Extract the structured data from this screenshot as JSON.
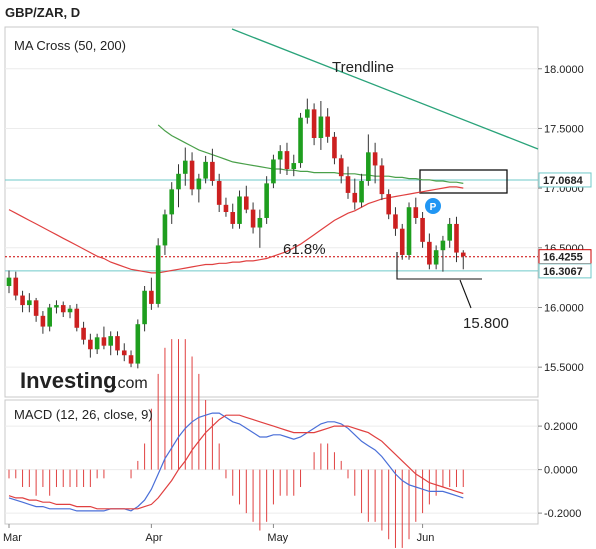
{
  "header": {
    "title": "GBP/ZAR, D"
  },
  "branding": {
    "logo_text": "Investing",
    "logo_suffix": ".com"
  },
  "colors": {
    "up": "#1e9e1e",
    "down": "#cc2020",
    "ma50": "#e04040",
    "ma200": "#4aa04a",
    "trendline": "#2aa37a",
    "hline": "#6fc9c9",
    "price_line": "#cc0000",
    "macd": "#4a6fd8",
    "signal": "#e04040",
    "hist": "#e04040"
  },
  "chart_data": [
    {
      "type": "candlestick",
      "panel_label": "MA Cross (50, 200)",
      "x_tick_labels": [
        "Mar",
        "Apr",
        "May",
        "Jun"
      ],
      "y_tick_labels": [
        "15.5000",
        "16.0000",
        "16.5000",
        "17.0000",
        "17.5000",
        "18.0000"
      ],
      "ylim": [
        15.25,
        18.35
      ],
      "price_badges": [
        {
          "label": "17.0684",
          "value": 17.0684
        },
        {
          "label": "16.4255",
          "value": 16.4255
        },
        {
          "label": "16.3067",
          "value": 16.3067
        }
      ],
      "annotations": [
        {
          "text": "Trendline"
        },
        {
          "text": "61.8%"
        },
        {
          "text": "15.800"
        },
        {
          "text": "P"
        }
      ],
      "ohlc": [
        [
          16.18,
          16.31,
          16.12,
          16.25
        ],
        [
          16.25,
          16.3,
          16.06,
          16.1
        ],
        [
          16.1,
          16.14,
          15.96,
          16.02
        ],
        [
          16.02,
          16.12,
          15.96,
          16.06
        ],
        [
          16.06,
          16.08,
          15.88,
          15.93
        ],
        [
          15.93,
          15.97,
          15.78,
          15.84
        ],
        [
          15.84,
          16.03,
          15.8,
          16.0
        ],
        [
          16.0,
          16.06,
          15.95,
          16.02
        ],
        [
          16.02,
          16.05,
          15.92,
          15.96
        ],
        [
          15.96,
          16.02,
          15.91,
          15.99
        ],
        [
          15.99,
          16.03,
          15.8,
          15.83
        ],
        [
          15.83,
          15.88,
          15.69,
          15.73
        ],
        [
          15.73,
          15.78,
          15.58,
          15.65
        ],
        [
          15.65,
          15.78,
          15.61,
          15.75
        ],
        [
          15.75,
          15.84,
          15.65,
          15.68
        ],
        [
          15.68,
          15.8,
          15.6,
          15.76
        ],
        [
          15.76,
          15.8,
          15.6,
          15.64
        ],
        [
          15.64,
          15.7,
          15.55,
          15.6
        ],
        [
          15.6,
          15.64,
          15.5,
          15.53
        ],
        [
          15.53,
          15.9,
          15.49,
          15.86
        ],
        [
          15.86,
          16.18,
          15.8,
          16.14
        ],
        [
          16.14,
          16.25,
          15.98,
          16.03
        ],
        [
          16.03,
          16.58,
          16.0,
          16.52
        ],
        [
          16.52,
          16.82,
          16.44,
          16.78
        ],
        [
          16.78,
          17.05,
          16.7,
          16.99
        ],
        [
          16.99,
          17.2,
          16.84,
          17.12
        ],
        [
          17.12,
          17.34,
          17.02,
          17.23
        ],
        [
          17.23,
          17.3,
          16.94,
          16.99
        ],
        [
          16.99,
          17.12,
          16.88,
          17.08
        ],
        [
          17.08,
          17.27,
          17.04,
          17.22
        ],
        [
          17.22,
          17.33,
          17.02,
          17.06
        ],
        [
          17.06,
          17.12,
          16.8,
          16.86
        ],
        [
          16.86,
          16.92,
          16.76,
          16.8
        ],
        [
          16.8,
          16.87,
          16.66,
          16.7
        ],
        [
          16.7,
          16.98,
          16.66,
          16.93
        ],
        [
          16.93,
          17.02,
          16.79,
          16.82
        ],
        [
          16.82,
          16.88,
          16.62,
          16.67
        ],
        [
          16.67,
          16.82,
          16.5,
          16.75
        ],
        [
          16.75,
          17.1,
          16.7,
          17.04
        ],
        [
          17.04,
          17.28,
          17.0,
          17.24
        ],
        [
          17.24,
          17.36,
          17.12,
          17.31
        ],
        [
          17.31,
          17.38,
          17.11,
          17.16
        ],
        [
          17.16,
          17.28,
          17.1,
          17.21
        ],
        [
          17.21,
          17.63,
          17.17,
          17.59
        ],
        [
          17.59,
          17.75,
          17.54,
          17.66
        ],
        [
          17.66,
          17.71,
          17.36,
          17.42
        ],
        [
          17.42,
          17.73,
          17.32,
          17.6
        ],
        [
          17.6,
          17.67,
          17.38,
          17.43
        ],
        [
          17.43,
          17.47,
          17.2,
          17.25
        ],
        [
          17.25,
          17.28,
          17.04,
          17.1
        ],
        [
          17.1,
          17.18,
          16.91,
          16.96
        ],
        [
          16.96,
          17.08,
          16.82,
          16.88
        ],
        [
          16.88,
          17.12,
          16.84,
          17.06
        ],
        [
          17.06,
          17.45,
          17.02,
          17.3
        ],
        [
          17.3,
          17.38,
          17.04,
          17.19
        ],
        [
          17.19,
          17.25,
          16.9,
          16.95
        ],
        [
          16.95,
          16.99,
          16.74,
          16.78
        ],
        [
          16.78,
          16.84,
          16.6,
          16.66
        ],
        [
          16.66,
          16.7,
          16.4,
          16.44
        ],
        [
          16.44,
          16.88,
          16.4,
          16.84
        ],
        [
          16.84,
          16.92,
          16.7,
          16.75
        ],
        [
          16.75,
          16.8,
          16.5,
          16.55
        ],
        [
          16.55,
          16.62,
          16.32,
          16.36
        ],
        [
          16.36,
          16.52,
          16.32,
          16.48
        ],
        [
          16.48,
          16.6,
          16.3,
          16.56
        ],
        [
          16.56,
          16.75,
          16.5,
          16.7
        ],
        [
          16.7,
          16.76,
          16.38,
          16.46
        ],
        [
          16.46,
          16.48,
          16.32,
          16.43
        ]
      ],
      "ma50": [
        16.82,
        16.79,
        16.76,
        16.73,
        16.7,
        16.67,
        16.64,
        16.61,
        16.58,
        16.55,
        16.52,
        16.49,
        16.46,
        16.43,
        16.41,
        16.38,
        16.36,
        16.34,
        16.32,
        16.31,
        16.3,
        16.29,
        16.29,
        16.3,
        16.31,
        16.32,
        16.33,
        16.34,
        16.35,
        16.36,
        16.36,
        16.37,
        16.37,
        16.38,
        16.38,
        16.39,
        16.39,
        16.4,
        16.41,
        16.43,
        16.45,
        16.47,
        16.5,
        16.53,
        16.57,
        16.61,
        16.65,
        16.69,
        16.73,
        16.76,
        16.79,
        16.81,
        16.84,
        16.87,
        16.89,
        16.91,
        16.92,
        16.93,
        16.94,
        16.95,
        16.96,
        16.97,
        16.98,
        16.99,
        17.0,
        17.01,
        17.01,
        17.0
      ],
      "ma200": [
        null,
        null,
        null,
        null,
        null,
        null,
        null,
        null,
        null,
        null,
        null,
        null,
        null,
        null,
        null,
        null,
        null,
        null,
        null,
        null,
        null,
        null,
        17.53,
        17.48,
        17.44,
        17.41,
        17.38,
        17.35,
        17.32,
        17.3,
        17.28,
        17.26,
        17.24,
        17.22,
        17.21,
        17.2,
        17.19,
        17.18,
        17.17,
        17.16,
        17.16,
        17.15,
        17.15,
        17.14,
        17.14,
        17.13,
        17.13,
        17.13,
        17.13,
        17.12,
        17.12,
        17.12,
        17.11,
        17.11,
        17.1,
        17.1,
        17.1,
        17.09,
        17.09,
        17.08,
        17.08,
        17.07,
        17.07,
        17.06,
        17.06,
        17.05,
        17.05,
        17.04
      ]
    },
    {
      "type": "line",
      "panel_label": "MACD (12, 26, close, 9)",
      "y_tick_labels": [
        "0.2000",
        "0.0000",
        "-0.2000"
      ],
      "ylim": [
        -0.25,
        0.32
      ],
      "series": [
        {
          "values": [
            -0.13,
            -0.14,
            -0.15,
            -0.16,
            -0.17,
            -0.17,
            -0.18,
            -0.18,
            -0.18,
            -0.18,
            -0.19,
            -0.19,
            -0.19,
            -0.19,
            -0.19,
            -0.18,
            -0.18,
            -0.18,
            -0.19,
            -0.17,
            -0.14,
            -0.09,
            -0.02,
            0.05,
            0.1,
            0.15,
            0.19,
            0.22,
            0.24,
            0.25,
            0.26,
            0.26,
            0.24,
            0.22,
            0.21,
            0.19,
            0.17,
            0.15,
            0.15,
            0.16,
            0.16,
            0.15,
            0.14,
            0.15,
            0.17,
            0.19,
            0.21,
            0.22,
            0.22,
            0.21,
            0.19,
            0.16,
            0.13,
            0.11,
            0.09,
            0.06,
            0.02,
            -0.02,
            -0.05,
            -0.07,
            -0.08,
            -0.09,
            -0.1,
            -0.1,
            -0.1,
            -0.11,
            -0.12,
            -0.13
          ]
        },
        {
          "values": [
            -0.12,
            -0.13,
            -0.13,
            -0.14,
            -0.14,
            -0.15,
            -0.15,
            -0.16,
            -0.16,
            -0.16,
            -0.17,
            -0.17,
            -0.17,
            -0.18,
            -0.18,
            -0.18,
            -0.18,
            -0.18,
            -0.18,
            -0.18,
            -0.17,
            -0.16,
            -0.13,
            -0.09,
            -0.05,
            0.0,
            0.04,
            0.09,
            0.13,
            0.17,
            0.2,
            0.23,
            0.25,
            0.25,
            0.25,
            0.24,
            0.23,
            0.22,
            0.21,
            0.2,
            0.19,
            0.18,
            0.17,
            0.17,
            0.17,
            0.17,
            0.18,
            0.19,
            0.2,
            0.2,
            0.2,
            0.19,
            0.18,
            0.17,
            0.15,
            0.13,
            0.1,
            0.07,
            0.04,
            0.01,
            -0.02,
            -0.04,
            -0.06,
            -0.07,
            -0.08,
            -0.09,
            -0.1,
            -0.11
          ]
        }
      ]
    }
  ]
}
